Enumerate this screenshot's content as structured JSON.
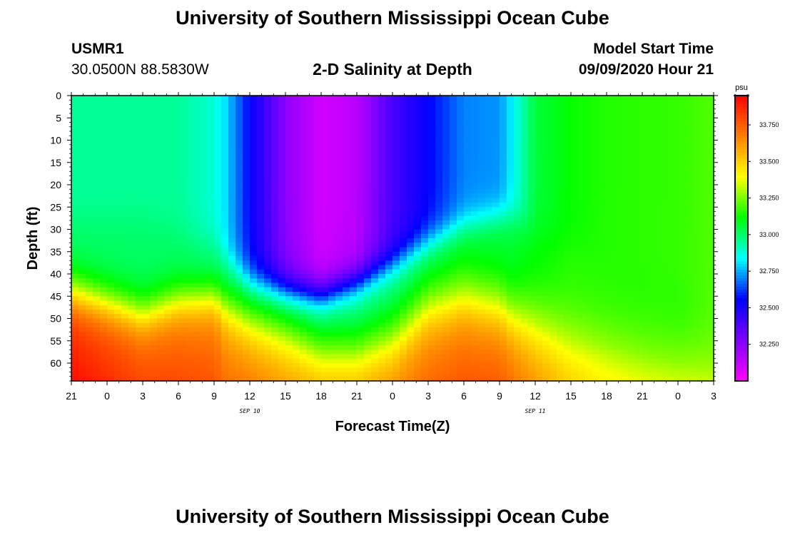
{
  "page": {
    "title_top": "University of Southern Mississippi Ocean Cube",
    "title_bottom": "University of Southern Mississippi Ocean Cube",
    "station_id": "USMR1",
    "station_coords": "30.0500N 88.5830W",
    "plot_title": "2-D Salinity at Depth",
    "model_start_label": "Model Start Time",
    "model_start_value": "09/09/2020 Hour 21"
  },
  "chart_data": {
    "type": "heatmap",
    "title": "2-D Salinity at Depth",
    "xlabel": "Forecast Time(Z)",
    "ylabel": "Depth (ft)",
    "x_ticks": [
      "21",
      "0",
      "3",
      "6",
      "9",
      "12",
      "15",
      "18",
      "21",
      "0",
      "3",
      "6",
      "9",
      "12",
      "15",
      "18",
      "21",
      "0",
      "3"
    ],
    "x_date_labels": [
      {
        "label": "SEP 10",
        "at_tick_index": 5
      },
      {
        "label": "SEP 11",
        "at_tick_index": 13
      }
    ],
    "y_ticks": [
      0,
      5,
      10,
      15,
      20,
      25,
      30,
      35,
      40,
      45,
      50,
      55,
      60
    ],
    "y_range": [
      0,
      64
    ],
    "x_range_hours": [
      0,
      54
    ],
    "colorbar": {
      "unit": "psu",
      "min": 32.0,
      "max": 33.95,
      "ticks": [
        "33.750",
        "33.500",
        "33.250",
        "33.000",
        "32.750",
        "32.500",
        "32.250"
      ],
      "colormap": [
        "#ff00ff",
        "#7f00ff",
        "#0000ff",
        "#00ffff",
        "#00ff00",
        "#ffff00",
        "#ff8000",
        "#ff0000"
      ]
    },
    "profile_times_hours": [
      0,
      6,
      9,
      12,
      13,
      15,
      18,
      21,
      24,
      27,
      30,
      33,
      36,
      37,
      39,
      42,
      45,
      48,
      51,
      54
    ],
    "profile_columns": [
      "t_hours",
      "surface_psu",
      "upper_transition_ft",
      "mid_psu",
      "halocline_ft",
      "halocline_width_ft",
      "bottom_psu"
    ],
    "profiles": [
      [
        0,
        32.95,
        28,
        33.0,
        44,
        3.0,
        33.8
      ],
      [
        6,
        32.95,
        27,
        33.0,
        49,
        3.0,
        33.7
      ],
      [
        9,
        32.95,
        30,
        33.0,
        46,
        3.0,
        33.68
      ],
      [
        12,
        32.88,
        33,
        32.97,
        45,
        3.0,
        33.65
      ],
      [
        13,
        32.8,
        37,
        32.95,
        47,
        3.5,
        33.6
      ],
      [
        15,
        32.55,
        42,
        32.93,
        50,
        4.0,
        33.6
      ],
      [
        18,
        32.25,
        44,
        32.95,
        53,
        4.0,
        33.55
      ],
      [
        21,
        32.1,
        45,
        32.95,
        57,
        4.0,
        33.55
      ],
      [
        24,
        32.15,
        42,
        32.95,
        57,
        4.0,
        33.55
      ],
      [
        27,
        32.4,
        38,
        32.98,
        54,
        4.0,
        33.58
      ],
      [
        30,
        32.55,
        33,
        33.02,
        47,
        4.0,
        33.62
      ],
      [
        33,
        32.7,
        29,
        33.06,
        45,
        4.0,
        33.65
      ],
      [
        36,
        32.72,
        27,
        33.06,
        47,
        4.0,
        33.65
      ],
      [
        37,
        32.82,
        27,
        33.06,
        49,
        4.0,
        33.62
      ],
      [
        39,
        33.05,
        30,
        33.1,
        51,
        4.5,
        33.55
      ],
      [
        42,
        33.12,
        33,
        33.15,
        54,
        4.5,
        33.45
      ],
      [
        45,
        33.15,
        36,
        33.15,
        56,
        4.5,
        33.4
      ],
      [
        48,
        33.16,
        40,
        33.15,
        58,
        4.5,
        33.38
      ],
      [
        51,
        33.17,
        43,
        33.15,
        59,
        4.5,
        33.36
      ],
      [
        54,
        33.2,
        46,
        33.2,
        62,
        4.5,
        33.4
      ]
    ]
  }
}
